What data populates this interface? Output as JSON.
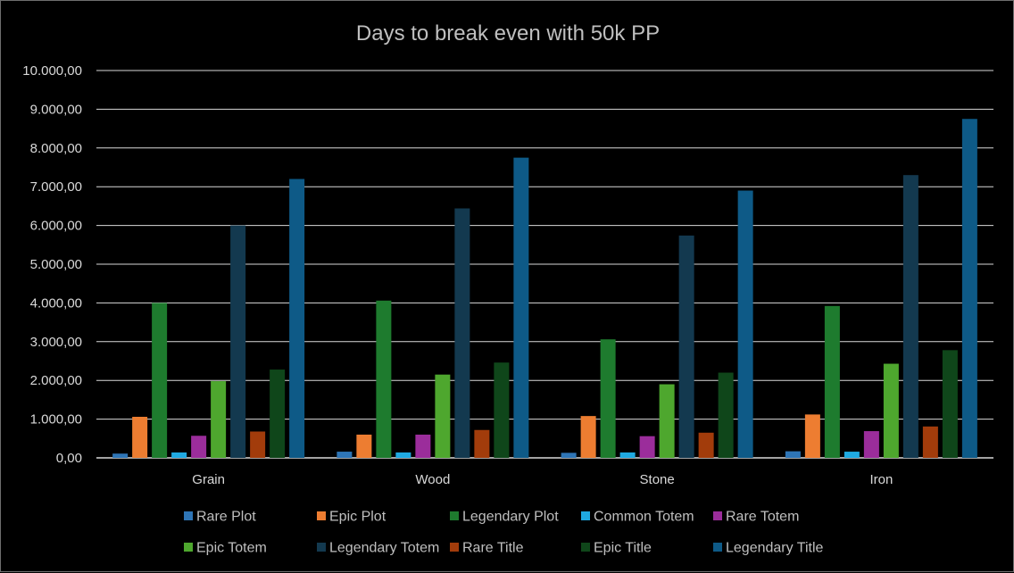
{
  "chart_data": {
    "type": "bar",
    "title": "Days to break even with 50k PP",
    "xlabel": "",
    "ylabel": "",
    "ylim": [
      0,
      10000
    ],
    "ytick_step": 1000,
    "ytick_labels": [
      "0,00",
      "1.000,00",
      "2.000,00",
      "3.000,00",
      "4.000,00",
      "5.000,00",
      "6.000,00",
      "7.000,00",
      "8.000,00",
      "9.000,00",
      "10.000,00"
    ],
    "grid": true,
    "legend_position": "bottom",
    "categories": [
      "Grain",
      "Wood",
      "Stone",
      "Iron"
    ],
    "series": [
      {
        "name": "Rare Plot",
        "color": "#2e75b6",
        "values": [
          110,
          160,
          130,
          170
        ]
      },
      {
        "name": "Epic Plot",
        "color": "#ed7d31",
        "values": [
          1060,
          600,
          1080,
          1120
        ]
      },
      {
        "name": "Legendary Plot",
        "color": "#1e7b2e",
        "values": [
          4000,
          4060,
          3060,
          3920
        ]
      },
      {
        "name": "Common Totem",
        "color": "#1fa9e1",
        "values": [
          140,
          140,
          140,
          160
        ]
      },
      {
        "name": "Rare Totem",
        "color": "#9b2d9b",
        "values": [
          570,
          600,
          560,
          690
        ]
      },
      {
        "name": "Epic Totem",
        "color": "#4ea72e",
        "values": [
          1980,
          2150,
          1900,
          2430
        ]
      },
      {
        "name": "Legendary Totem",
        "color": "#13394f",
        "values": [
          6000,
          6440,
          5740,
          7300
        ]
      },
      {
        "name": "Rare Title",
        "color": "#a23c0b",
        "values": [
          680,
          720,
          650,
          810
        ]
      },
      {
        "name": "Epic Title",
        "color": "#0f461a",
        "values": [
          2280,
          2460,
          2200,
          2780
        ]
      },
      {
        "name": "Legendary Title",
        "color": "#0e5a87",
        "values": [
          7200,
          7750,
          6900,
          8750
        ]
      }
    ]
  }
}
